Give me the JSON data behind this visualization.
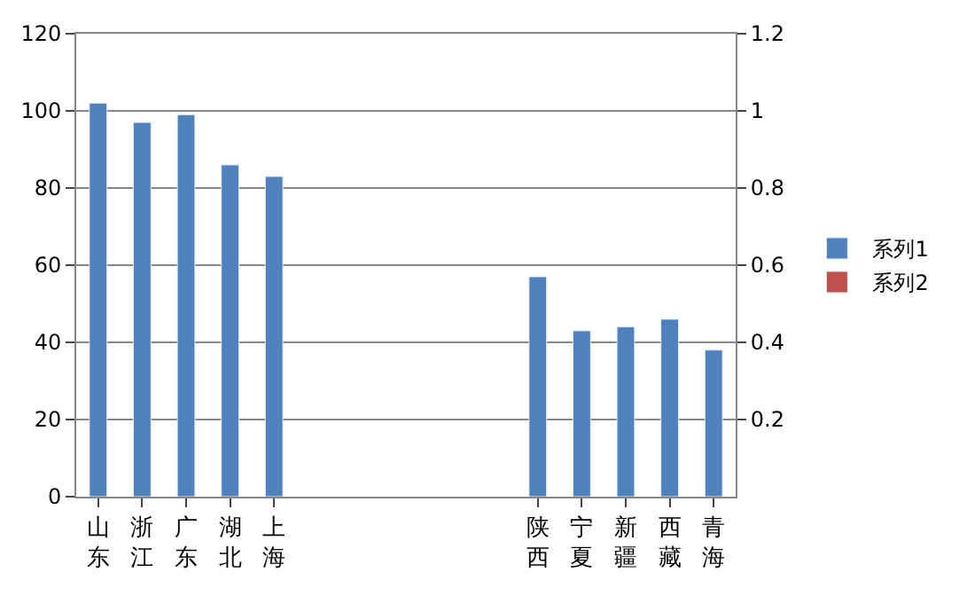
{
  "chart_data": {
    "type": "bar",
    "categories": [
      "山东",
      "浙江",
      "广东",
      "湖北",
      "上海",
      null,
      null,
      null,
      null,
      null,
      "陕西",
      "宁夏",
      "新疆",
      "西藏",
      "青海"
    ],
    "series": [
      {
        "name": "系列1",
        "color": "#4f81bd",
        "values": [
          102,
          97,
          99,
          86,
          83,
          null,
          null,
          null,
          null,
          null,
          57,
          43,
          44,
          46,
          38
        ]
      },
      {
        "name": "系列2",
        "color": "#c0504d",
        "axis": "y2",
        "values": [
          null,
          null,
          null,
          null,
          null,
          null,
          null,
          null,
          null,
          null,
          null,
          null,
          null,
          null,
          null
        ]
      }
    ],
    "ylim": [
      0,
      120
    ],
    "yticks": [
      0,
      20,
      40,
      60,
      80,
      100,
      120
    ],
    "y2lim": [
      0,
      1.2
    ],
    "y2ticks": [
      0.2,
      0.4,
      0.6,
      0.8,
      1,
      1.2
    ],
    "grid": "y",
    "legend": "right"
  }
}
